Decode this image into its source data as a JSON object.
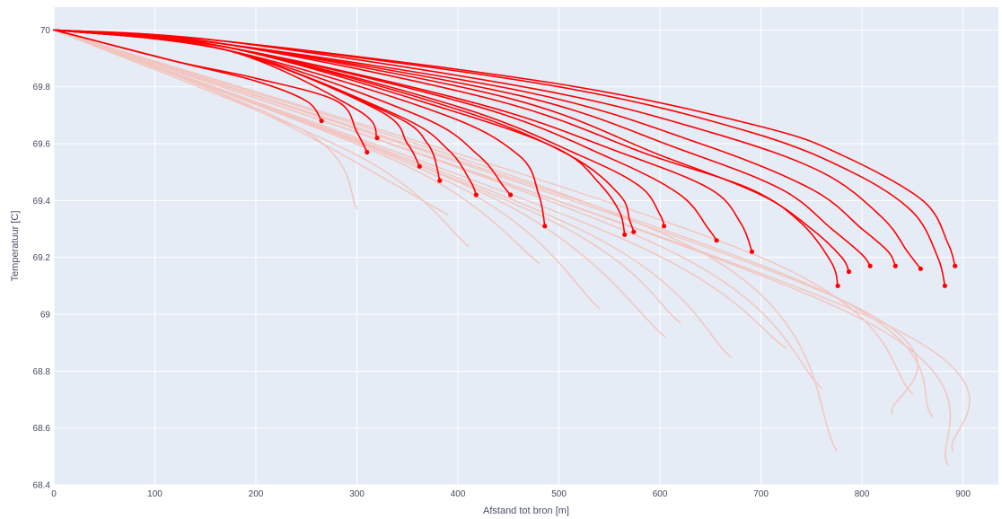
{
  "chart_data": {
    "type": "line",
    "xlabel": "Afstand tot bron [m]",
    "ylabel": "Temperatuur [C]",
    "xlim": [
      0,
      935
    ],
    "ylim": [
      68.4,
      70.08
    ],
    "x_ticks": [
      0,
      100,
      200,
      300,
      400,
      500,
      600,
      700,
      800,
      900
    ],
    "y_ticks": [
      68.4,
      68.6,
      68.8,
      69,
      69.2,
      69.4,
      69.6,
      69.8,
      70
    ],
    "y_tick_labels": [
      "68.4",
      "68.6",
      "68.8",
      "69",
      "69.2",
      "69.4",
      "69.6",
      "69.8",
      "70"
    ],
    "grid": true,
    "background": "#e5ecf6",
    "colors": {
      "highlight": "#ff0000",
      "faded": "#f2c6c0"
    },
    "series": [
      {
        "style": "faded",
        "points": [
          [
            0,
            70.0
          ],
          [
            200,
            69.72
          ],
          [
            390,
            69.35
          ]
        ]
      },
      {
        "style": "faded",
        "points": [
          [
            0,
            70.0
          ],
          [
            250,
            69.64
          ],
          [
            300,
            69.37
          ]
        ]
      },
      {
        "style": "faded",
        "points": [
          [
            0,
            70.0
          ],
          [
            300,
            69.56
          ],
          [
            410,
            69.24
          ]
        ]
      },
      {
        "style": "faded",
        "points": [
          [
            0,
            70.0
          ],
          [
            350,
            69.52
          ],
          [
            480,
            69.18
          ]
        ]
      },
      {
        "style": "faded",
        "points": [
          [
            0,
            70.0
          ],
          [
            400,
            69.45
          ],
          [
            540,
            69.02
          ]
        ]
      },
      {
        "style": "faded",
        "points": [
          [
            0,
            70.0
          ],
          [
            440,
            69.4
          ],
          [
            605,
            68.92
          ]
        ]
      },
      {
        "style": "faded",
        "points": [
          [
            0,
            70.0
          ],
          [
            480,
            69.35
          ],
          [
            620,
            68.97
          ]
        ]
      },
      {
        "style": "faded",
        "points": [
          [
            0,
            70.0
          ],
          [
            520,
            69.3
          ],
          [
            670,
            68.85
          ]
        ]
      },
      {
        "style": "faded",
        "points": [
          [
            0,
            70.0
          ],
          [
            560,
            69.27
          ],
          [
            725,
            68.88
          ]
        ]
      },
      {
        "style": "faded",
        "points": [
          [
            0,
            70.0
          ],
          [
            600,
            69.24
          ],
          [
            760,
            68.74
          ]
        ]
      },
      {
        "style": "faded",
        "points": [
          [
            0,
            70.0
          ],
          [
            640,
            69.22
          ],
          [
            775,
            68.52
          ]
        ]
      },
      {
        "style": "faded",
        "points": [
          [
            0,
            70.0
          ],
          [
            700,
            69.2
          ],
          [
            850,
            68.72
          ]
        ]
      },
      {
        "style": "faded",
        "points": [
          [
            0,
            70.0
          ],
          [
            750,
            69.1
          ],
          [
            870,
            68.64
          ]
        ]
      },
      {
        "style": "faded",
        "points": [
          [
            0,
            70.0
          ],
          [
            790,
            69.0
          ],
          [
            885,
            68.47
          ]
        ]
      },
      {
        "style": "faded",
        "points": [
          [
            0,
            70.0
          ],
          [
            820,
            68.97
          ],
          [
            890,
            68.52
          ]
        ]
      },
      {
        "style": "faded",
        "points": [
          [
            0,
            70.0
          ],
          [
            780,
            69.05
          ],
          [
            830,
            68.65
          ]
        ]
      },
      {
        "style": "highlight",
        "points": [
          [
            0,
            70.0
          ],
          [
            170,
            69.96
          ],
          [
            500,
            69.81
          ],
          [
            700,
            69.66
          ],
          [
            780,
            69.56
          ],
          [
            860,
            69.4
          ],
          [
            885,
            69.25
          ],
          [
            892,
            69.17
          ]
        ]
      },
      {
        "style": "highlight",
        "points": [
          [
            0,
            70.0
          ],
          [
            170,
            69.96
          ],
          [
            500,
            69.8
          ],
          [
            690,
            69.64
          ],
          [
            790,
            69.5
          ],
          [
            850,
            69.36
          ],
          [
            875,
            69.2
          ],
          [
            882,
            69.1
          ]
        ]
      },
      {
        "style": "highlight",
        "points": [
          [
            0,
            70.0
          ],
          [
            170,
            69.96
          ],
          [
            480,
            69.79
          ],
          [
            650,
            69.64
          ],
          [
            760,
            69.5
          ],
          [
            820,
            69.34
          ],
          [
            845,
            69.22
          ],
          [
            858,
            69.16
          ]
        ]
      },
      {
        "style": "highlight",
        "points": [
          [
            0,
            70.0
          ],
          [
            170,
            69.95
          ],
          [
            470,
            69.78
          ],
          [
            640,
            69.6
          ],
          [
            750,
            69.44
          ],
          [
            800,
            69.3
          ],
          [
            826,
            69.22
          ],
          [
            833,
            69.17
          ]
        ]
      },
      {
        "style": "highlight",
        "points": [
          [
            0,
            70.0
          ],
          [
            170,
            69.95
          ],
          [
            460,
            69.77
          ],
          [
            620,
            69.58
          ],
          [
            720,
            69.44
          ],
          [
            770,
            69.3
          ],
          [
            800,
            69.21
          ],
          [
            808,
            69.17
          ]
        ]
      },
      {
        "style": "highlight",
        "points": [
          [
            0,
            70.0
          ],
          [
            170,
            69.95
          ],
          [
            450,
            69.76
          ],
          [
            600,
            69.56
          ],
          [
            700,
            69.42
          ],
          [
            750,
            69.3
          ],
          [
            780,
            69.2
          ],
          [
            787,
            69.15
          ]
        ]
      },
      {
        "style": "highlight",
        "points": [
          [
            0,
            70.0
          ],
          [
            170,
            69.95
          ],
          [
            440,
            69.75
          ],
          [
            590,
            69.56
          ],
          [
            690,
            69.44
          ],
          [
            740,
            69.32
          ],
          [
            770,
            69.18
          ],
          [
            776,
            69.1
          ]
        ]
      },
      {
        "style": "highlight",
        "points": [
          [
            0,
            70.0
          ],
          [
            170,
            69.94
          ],
          [
            420,
            69.74
          ],
          [
            560,
            69.57
          ],
          [
            650,
            69.44
          ],
          [
            680,
            69.32
          ],
          [
            691,
            69.22
          ]
        ]
      },
      {
        "style": "highlight",
        "points": [
          [
            0,
            70.0
          ],
          [
            170,
            69.94
          ],
          [
            420,
            69.73
          ],
          [
            550,
            69.55
          ],
          [
            620,
            69.42
          ],
          [
            648,
            69.3
          ],
          [
            656,
            69.26
          ]
        ]
      },
      {
        "style": "highlight",
        "points": [
          [
            0,
            70.0
          ],
          [
            170,
            69.94
          ],
          [
            400,
            69.73
          ],
          [
            520,
            69.56
          ],
          [
            580,
            69.45
          ],
          [
            600,
            69.35
          ],
          [
            604,
            69.31
          ]
        ]
      },
      {
        "style": "highlight",
        "points": [
          [
            0,
            70.0
          ],
          [
            170,
            69.94
          ],
          [
            400,
            69.72
          ],
          [
            510,
            69.56
          ],
          [
            560,
            69.42
          ],
          [
            570,
            69.33
          ],
          [
            574,
            69.29
          ]
        ]
      },
      {
        "style": "highlight",
        "points": [
          [
            0,
            70.0
          ],
          [
            170,
            69.94
          ],
          [
            390,
            69.72
          ],
          [
            500,
            69.58
          ],
          [
            540,
            69.46
          ],
          [
            560,
            69.36
          ],
          [
            565,
            69.28
          ]
        ]
      },
      {
        "style": "highlight",
        "points": [
          [
            0,
            70.0
          ],
          [
            170,
            69.93
          ],
          [
            380,
            69.71
          ],
          [
            460,
            69.56
          ],
          [
            480,
            69.42
          ],
          [
            486,
            69.31
          ]
        ]
      },
      {
        "style": "highlight",
        "points": [
          [
            0,
            70.0
          ],
          [
            170,
            69.93
          ],
          [
            360,
            69.7
          ],
          [
            420,
            69.56
          ],
          [
            445,
            69.45
          ],
          [
            452,
            69.42
          ]
        ]
      },
      {
        "style": "highlight",
        "points": [
          [
            0,
            70.0
          ],
          [
            170,
            69.93
          ],
          [
            340,
            69.7
          ],
          [
            390,
            69.58
          ],
          [
            412,
            69.47
          ],
          [
            418,
            69.42
          ]
        ]
      },
      {
        "style": "highlight",
        "points": [
          [
            0,
            70.0
          ],
          [
            170,
            69.93
          ],
          [
            330,
            69.71
          ],
          [
            370,
            69.6
          ],
          [
            382,
            69.47
          ]
        ]
      },
      {
        "style": "highlight",
        "points": [
          [
            0,
            70.0
          ],
          [
            170,
            69.93
          ],
          [
            320,
            69.72
          ],
          [
            350,
            69.6
          ],
          [
            362,
            69.52
          ]
        ]
      },
      {
        "style": "highlight",
        "points": [
          [
            0,
            70.0
          ],
          [
            170,
            69.93
          ],
          [
            300,
            69.72
          ],
          [
            320,
            69.62
          ]
        ]
      },
      {
        "style": "highlight",
        "points": [
          [
            0,
            70.0
          ],
          [
            120,
            69.89
          ],
          [
            200,
            69.83
          ],
          [
            280,
            69.75
          ],
          [
            300,
            69.64
          ],
          [
            310,
            69.57
          ]
        ]
      },
      {
        "style": "highlight",
        "points": [
          [
            0,
            70.0
          ],
          [
            120,
            69.89
          ],
          [
            200,
            69.82
          ],
          [
            250,
            69.75
          ],
          [
            265,
            69.68
          ]
        ]
      }
    ]
  }
}
